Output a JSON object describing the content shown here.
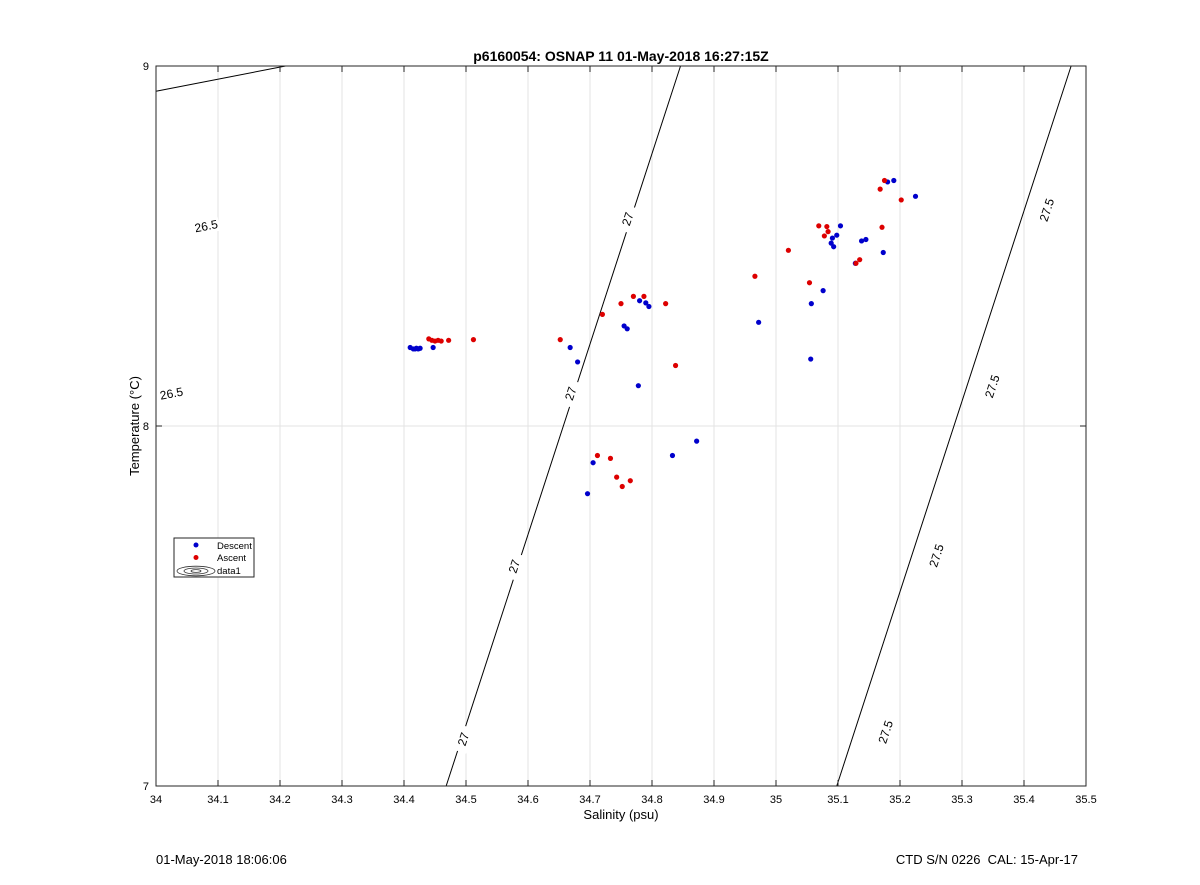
{
  "footer": {
    "left": "01-May-2018 18:06:06",
    "right": "CTD S/N 0226  CAL: 15-Apr-17"
  },
  "chart_data": {
    "type": "scatter",
    "title": "p6160054: OSNAP 11 01-May-2018 16:27:15Z",
    "xlabel": "Salinity (psu)",
    "ylabel": "Temperature (°C)",
    "xlim": [
      34,
      35.5
    ],
    "ylim": [
      7,
      9
    ],
    "x_ticks": [
      34,
      34.1,
      34.2,
      34.3,
      34.4,
      34.5,
      34.6,
      34.7,
      34.8,
      34.9,
      35,
      35.1,
      35.2,
      35.3,
      35.4,
      35.5
    ],
    "x_tick_labels": [
      "34",
      "34.1",
      "34.2",
      "34.3",
      "34.4",
      "34.5",
      "34.6",
      "34.7",
      "34.8",
      "34.9",
      "35",
      "35.1",
      "35.2",
      "35.3",
      "35.4",
      "35.5"
    ],
    "y_ticks": [
      7,
      8,
      9
    ],
    "y_tick_labels": [
      "7",
      "8",
      "9"
    ],
    "grid": true,
    "legend_position": "left",
    "legend": [
      {
        "name": "Descent",
        "color": "#0000cc",
        "marker": "dot"
      },
      {
        "name": "Ascent",
        "color": "#dd0000",
        "marker": "dot"
      },
      {
        "name": "data1",
        "marker": "contour"
      }
    ],
    "series": [
      {
        "name": "Descent",
        "color": "#0000cc",
        "x": [
          34.41,
          34.415,
          34.418,
          34.42,
          34.423,
          34.426,
          34.447,
          34.668,
          34.68,
          34.696,
          34.705,
          34.755,
          34.76,
          34.778,
          34.78,
          34.79,
          34.795,
          34.833,
          34.872,
          34.972,
          35.056,
          35.057,
          35.076,
          35.089,
          35.091,
          35.093,
          35.098,
          35.104,
          35.128,
          35.138,
          35.145,
          35.173,
          35.18,
          35.19,
          35.225
        ],
        "y": [
          8.218,
          8.214,
          8.214,
          8.216,
          8.214,
          8.216,
          8.218,
          8.218,
          8.178,
          7.812,
          7.898,
          8.278,
          8.27,
          8.112,
          8.348,
          8.342,
          8.332,
          7.918,
          7.958,
          8.288,
          8.186,
          8.34,
          8.376,
          8.508,
          8.522,
          8.498,
          8.53,
          8.556,
          8.452,
          8.514,
          8.518,
          8.482,
          8.678,
          8.682,
          8.638
        ],
        "marker": "dot"
      },
      {
        "name": "Ascent",
        "color": "#dd0000",
        "x": [
          34.44,
          34.445,
          34.45,
          34.455,
          34.46,
          34.472,
          34.512,
          34.652,
          34.712,
          34.72,
          34.733,
          34.743,
          34.75,
          34.752,
          34.765,
          34.77,
          34.787,
          34.822,
          34.838,
          34.966,
          35.02,
          35.054,
          35.069,
          35.078,
          35.082,
          35.084,
          35.129,
          35.135,
          35.168,
          35.171,
          35.175,
          35.202
        ],
        "y": [
          8.242,
          8.238,
          8.236,
          8.238,
          8.236,
          8.238,
          8.24,
          8.24,
          7.918,
          8.31,
          7.91,
          7.858,
          8.34,
          7.832,
          7.848,
          8.36,
          8.36,
          8.34,
          8.168,
          8.416,
          8.488,
          8.398,
          8.556,
          8.528,
          8.554,
          8.54,
          8.452,
          8.462,
          8.658,
          8.552,
          8.682,
          8.628
        ]
      }
    ],
    "contours": [
      {
        "level": "26.5",
        "points": [
          [
            34.0,
            8.93
          ],
          [
            34.209,
            9.0
          ]
        ],
        "labels": [
          [
            34.081,
            8.555
          ],
          [
            34.025,
            8.09
          ]
        ]
      },
      {
        "level": "27",
        "points": [
          [
            34.468,
            7.0
          ],
          [
            34.846,
            9.0
          ]
        ],
        "labels": [
          [
            34.761,
            8.575
          ],
          [
            34.669,
            8.09
          ],
          [
            34.578,
            7.61
          ],
          [
            34.496,
            7.13
          ]
        ]
      },
      {
        "level": "27.5",
        "points": [
          [
            35.098,
            7.0
          ],
          [
            35.476,
            9.0
          ]
        ],
        "labels": [
          [
            35.437,
            8.6
          ],
          [
            35.349,
            8.11
          ],
          [
            35.259,
            7.64
          ],
          [
            35.177,
            7.15
          ]
        ]
      }
    ]
  }
}
